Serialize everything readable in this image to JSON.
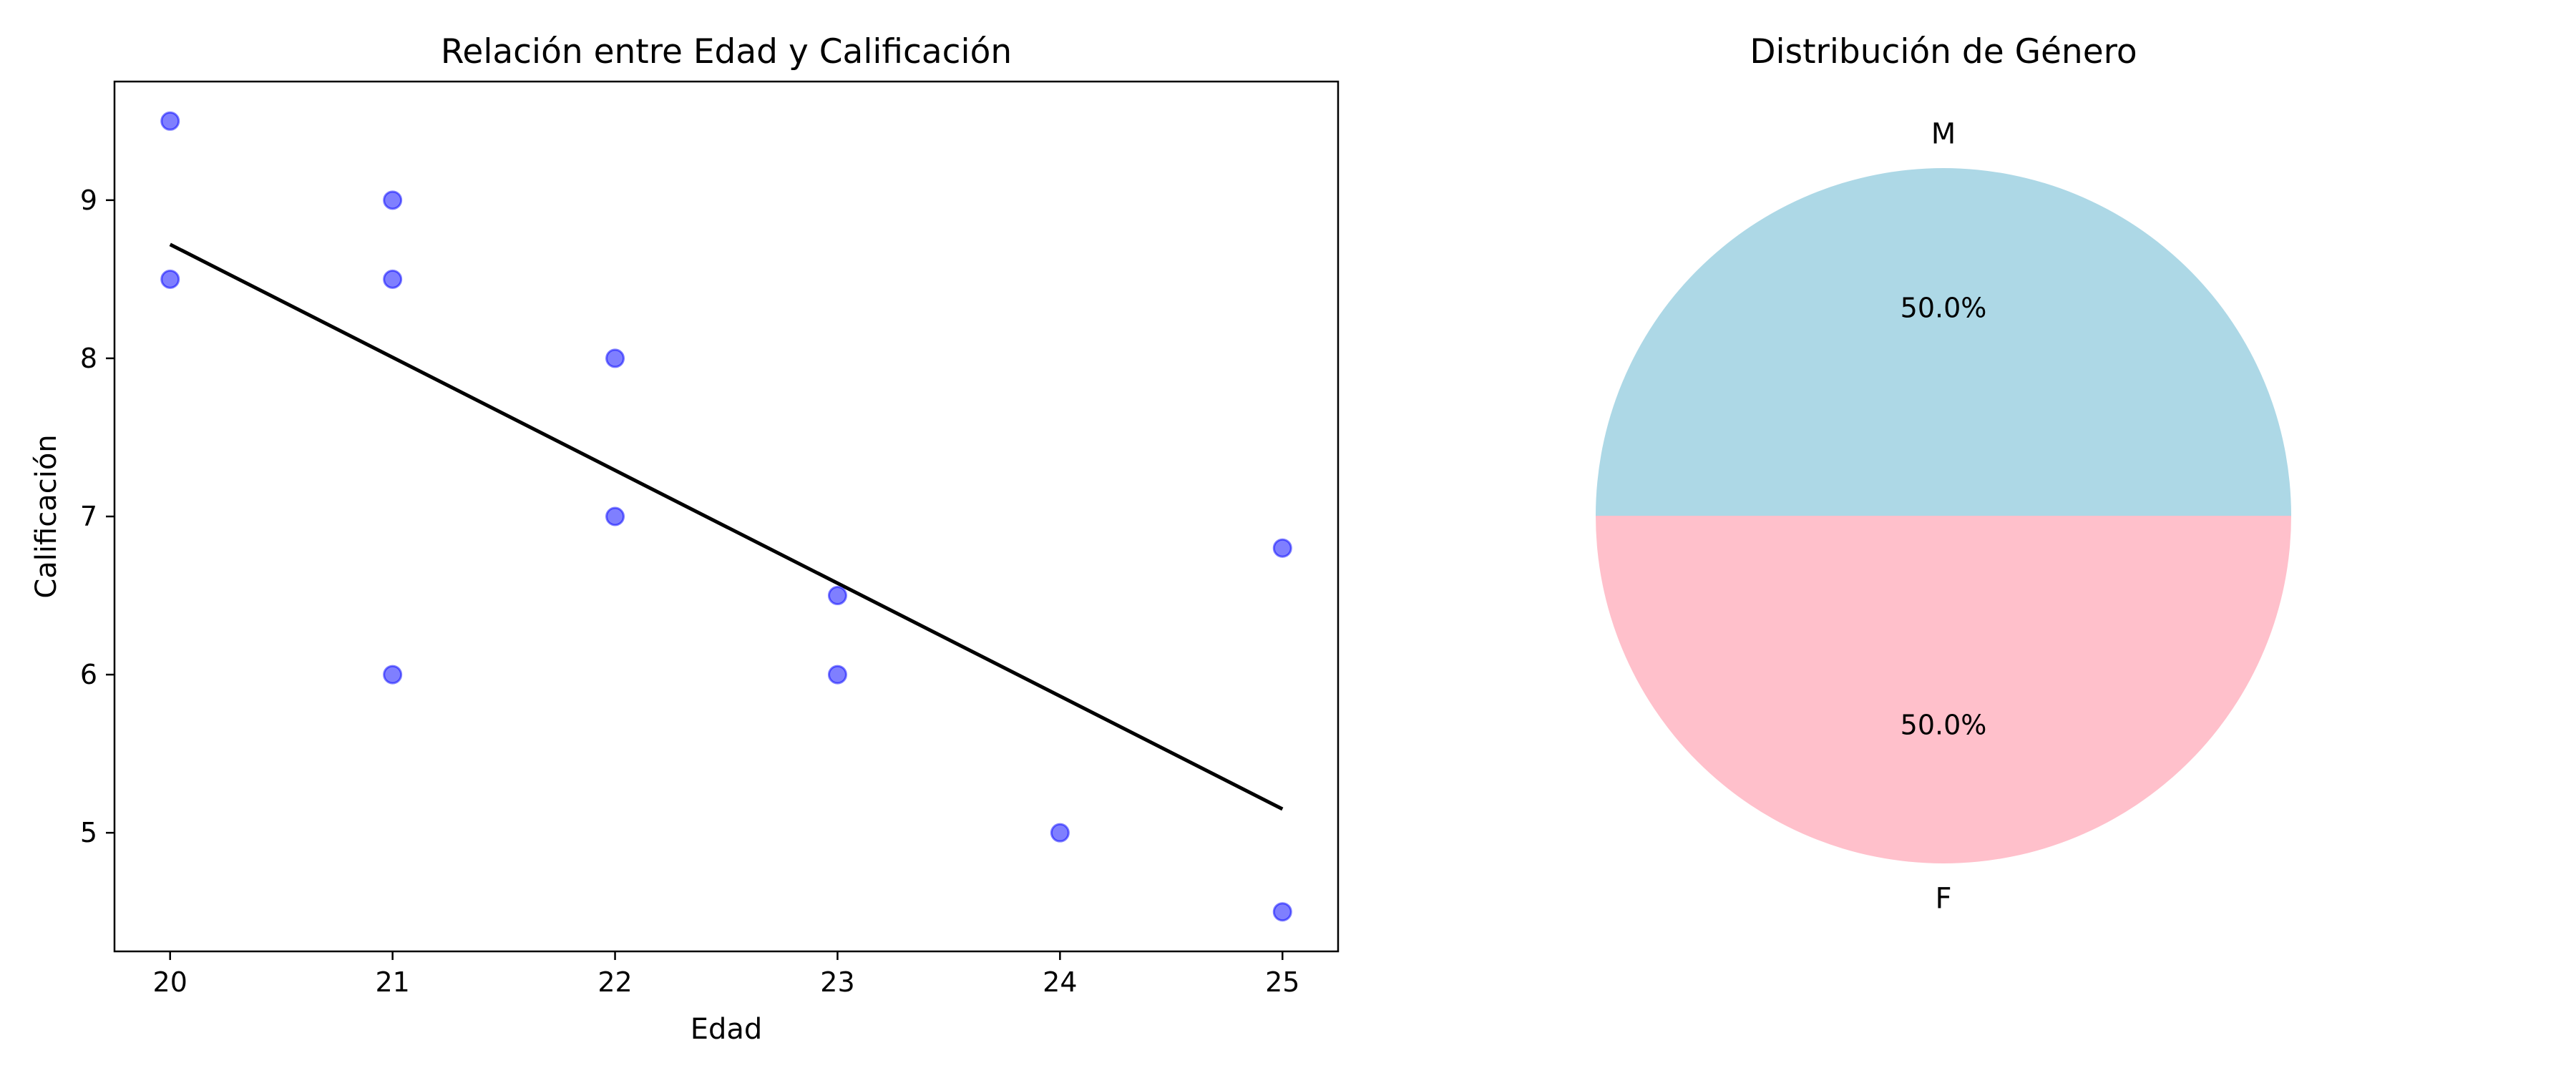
{
  "chart_data": [
    {
      "type": "scatter",
      "title": "Relación entre Edad y Calificación",
      "xlabel": "Edad",
      "ylabel": "Calificación",
      "xlim": [
        19.75,
        25.25
      ],
      "ylim": [
        4.25,
        9.75
      ],
      "xticks": [
        20,
        21,
        22,
        23,
        24,
        25
      ],
      "yticks": [
        5,
        6,
        7,
        8,
        9
      ],
      "grid": false,
      "point_color": "#0000ff",
      "point_alpha": 0.5,
      "points": [
        {
          "x": 20,
          "y": 9.5
        },
        {
          "x": 20,
          "y": 8.5
        },
        {
          "x": 21,
          "y": 9.0
        },
        {
          "x": 21,
          "y": 8.5
        },
        {
          "x": 21,
          "y": 6.0
        },
        {
          "x": 22,
          "y": 8.0
        },
        {
          "x": 22,
          "y": 7.0
        },
        {
          "x": 23,
          "y": 6.5
        },
        {
          "x": 23,
          "y": 6.0
        },
        {
          "x": 24,
          "y": 5.0
        },
        {
          "x": 25,
          "y": 6.8
        },
        {
          "x": 25,
          "y": 4.5
        }
      ],
      "trend_line": {
        "color": "#000000",
        "x": [
          20,
          25
        ],
        "y": [
          8.72,
          5.15
        ]
      }
    },
    {
      "type": "pie",
      "title": "Distribución de Género",
      "slices": [
        {
          "label": "M",
          "value": 50.0,
          "pct_label": "50.0%",
          "color": "#add8e6"
        },
        {
          "label": "F",
          "value": 50.0,
          "pct_label": "50.0%",
          "color": "#ffc0cb"
        }
      ]
    }
  ]
}
